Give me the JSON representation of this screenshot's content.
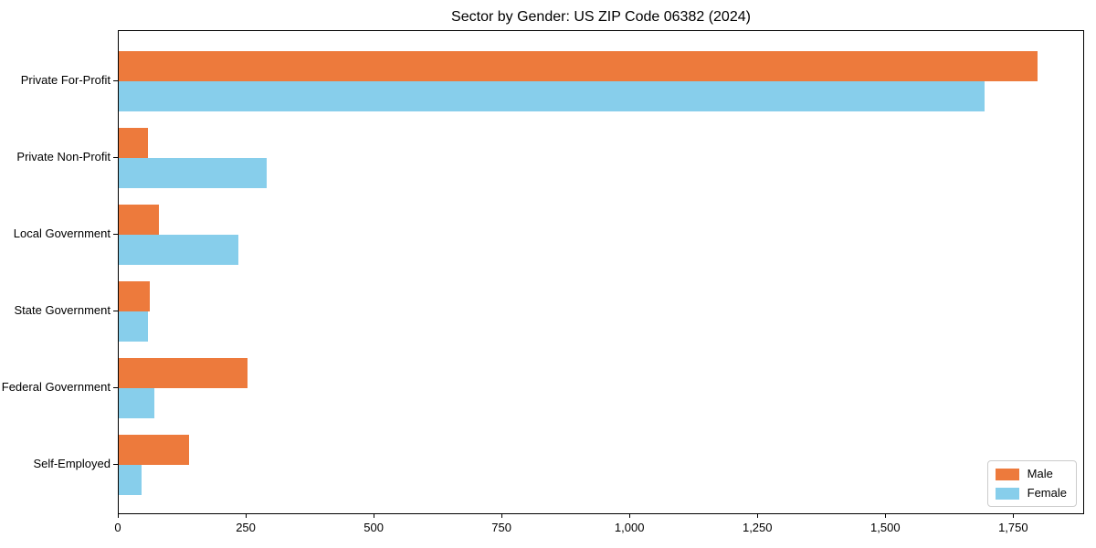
{
  "title": "Sector by Gender: US ZIP Code 06382 (2024)",
  "colors": {
    "male": "#ED7A3C",
    "female": "#87CEEB",
    "axis": "#000000",
    "background": "#FFFFFF",
    "legend_border": "#CCCCCC"
  },
  "legend": {
    "position": "lower right",
    "items": [
      {
        "label": "Male",
        "color": "#ED7A3C"
      },
      {
        "label": "Female",
        "color": "#87CEEB"
      }
    ]
  },
  "chart_data": {
    "type": "bar",
    "orientation": "horizontal",
    "title": "Sector by Gender: US ZIP Code 06382 (2024)",
    "xlabel": "",
    "ylabel": "",
    "categories": [
      "Private For-Profit",
      "Private Non-Profit",
      "Local Government",
      "State Government",
      "Federal Government",
      "Self-Employed"
    ],
    "series": [
      {
        "name": "Male",
        "color": "#ED7A3C",
        "values": [
          1795,
          57,
          78,
          61,
          252,
          137
        ]
      },
      {
        "name": "Female",
        "color": "#87CEEB",
        "values": [
          1693,
          289,
          233,
          57,
          69,
          45
        ]
      }
    ],
    "xlim": [
      0,
      1885
    ],
    "x_ticks": [
      0,
      250,
      500,
      750,
      1000,
      1250,
      1500,
      1750
    ],
    "x_tick_labels": [
      "0",
      "250",
      "500",
      "750",
      "1,000",
      "1,250",
      "1,500",
      "1,750"
    ],
    "grid": false,
    "legend_position": "lower right"
  }
}
